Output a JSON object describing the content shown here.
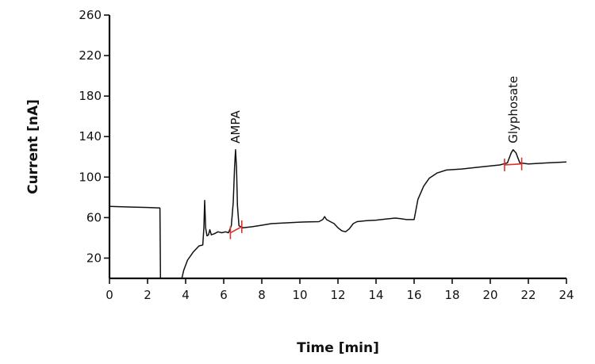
{
  "chart_data": {
    "type": "line",
    "title": "",
    "xlabel": "Time [min]",
    "ylabel": "Current [nA]",
    "xlim": [
      0,
      24
    ],
    "ylim": [
      0,
      260
    ],
    "xticks": [
      0,
      2,
      4,
      6,
      8,
      10,
      12,
      14,
      16,
      18,
      20,
      22,
      24
    ],
    "yticks": [
      20,
      60,
      100,
      140,
      180,
      220,
      260
    ],
    "grid": false,
    "legend": "none",
    "colors": {
      "trace": "#111111",
      "integration": "#e0302a"
    },
    "series": [
      {
        "points": [
          [
            0,
            71
          ],
          [
            1,
            70.5
          ],
          [
            2,
            70
          ],
          [
            2.65,
            69.5
          ],
          [
            2.68,
            0
          ],
          [
            3.8,
            0
          ],
          [
            3.9,
            8
          ],
          [
            4.1,
            18
          ],
          [
            4.4,
            26
          ],
          [
            4.7,
            32
          ],
          [
            4.9,
            33
          ],
          [
            4.96,
            50
          ],
          [
            5.0,
            77
          ],
          [
            5.05,
            50
          ],
          [
            5.12,
            42
          ],
          [
            5.2,
            43
          ],
          [
            5.27,
            48
          ],
          [
            5.35,
            43
          ],
          [
            5.5,
            44
          ],
          [
            5.7,
            46
          ],
          [
            5.9,
            45
          ],
          [
            6.1,
            46
          ],
          [
            6.25,
            45
          ],
          [
            6.4,
            52
          ],
          [
            6.5,
            75
          ],
          [
            6.57,
            110
          ],
          [
            6.62,
            127
          ],
          [
            6.67,
            110
          ],
          [
            6.72,
            72
          ],
          [
            6.8,
            52
          ],
          [
            7.0,
            50
          ],
          [
            7.5,
            51
          ],
          [
            8,
            52.5
          ],
          [
            8.5,
            54
          ],
          [
            9,
            54.5
          ],
          [
            9.5,
            55
          ],
          [
            10,
            55.5
          ],
          [
            10.5,
            55.8
          ],
          [
            11.0,
            56
          ],
          [
            11.2,
            58
          ],
          [
            11.3,
            61
          ],
          [
            11.4,
            58
          ],
          [
            11.6,
            56
          ],
          [
            11.8,
            54
          ],
          [
            12.0,
            50
          ],
          [
            12.2,
            47
          ],
          [
            12.4,
            46
          ],
          [
            12.6,
            49
          ],
          [
            12.8,
            54
          ],
          [
            13,
            56
          ],
          [
            13.5,
            57
          ],
          [
            14,
            57.5
          ],
          [
            14.5,
            58.5
          ],
          [
            15,
            59.5
          ],
          [
            15.3,
            59
          ],
          [
            15.6,
            58
          ],
          [
            15.9,
            58
          ],
          [
            16.0,
            58
          ],
          [
            16.2,
            78
          ],
          [
            16.5,
            91
          ],
          [
            16.8,
            99
          ],
          [
            17.2,
            104
          ],
          [
            17.7,
            107
          ],
          [
            18.5,
            108
          ],
          [
            19.5,
            110
          ],
          [
            20.5,
            112
          ],
          [
            20.9,
            114
          ],
          [
            21.1,
            124
          ],
          [
            21.2,
            127
          ],
          [
            21.35,
            124
          ],
          [
            21.55,
            114
          ],
          [
            22,
            113
          ],
          [
            23,
            114
          ],
          [
            24,
            115
          ]
        ]
      }
    ],
    "annotations": [
      {
        "text": "AMPA",
        "x": 6.62,
        "y": 127
      },
      {
        "text": "Glyphosate",
        "x": 21.2,
        "y": 127
      }
    ],
    "integration_marks": [
      {
        "x_start": 6.35,
        "x_end": 6.95,
        "y_start": 45,
        "y_end": 51
      },
      {
        "x_start": 20.75,
        "x_end": 21.65,
        "y_start": 112,
        "y_end": 113
      }
    ]
  }
}
